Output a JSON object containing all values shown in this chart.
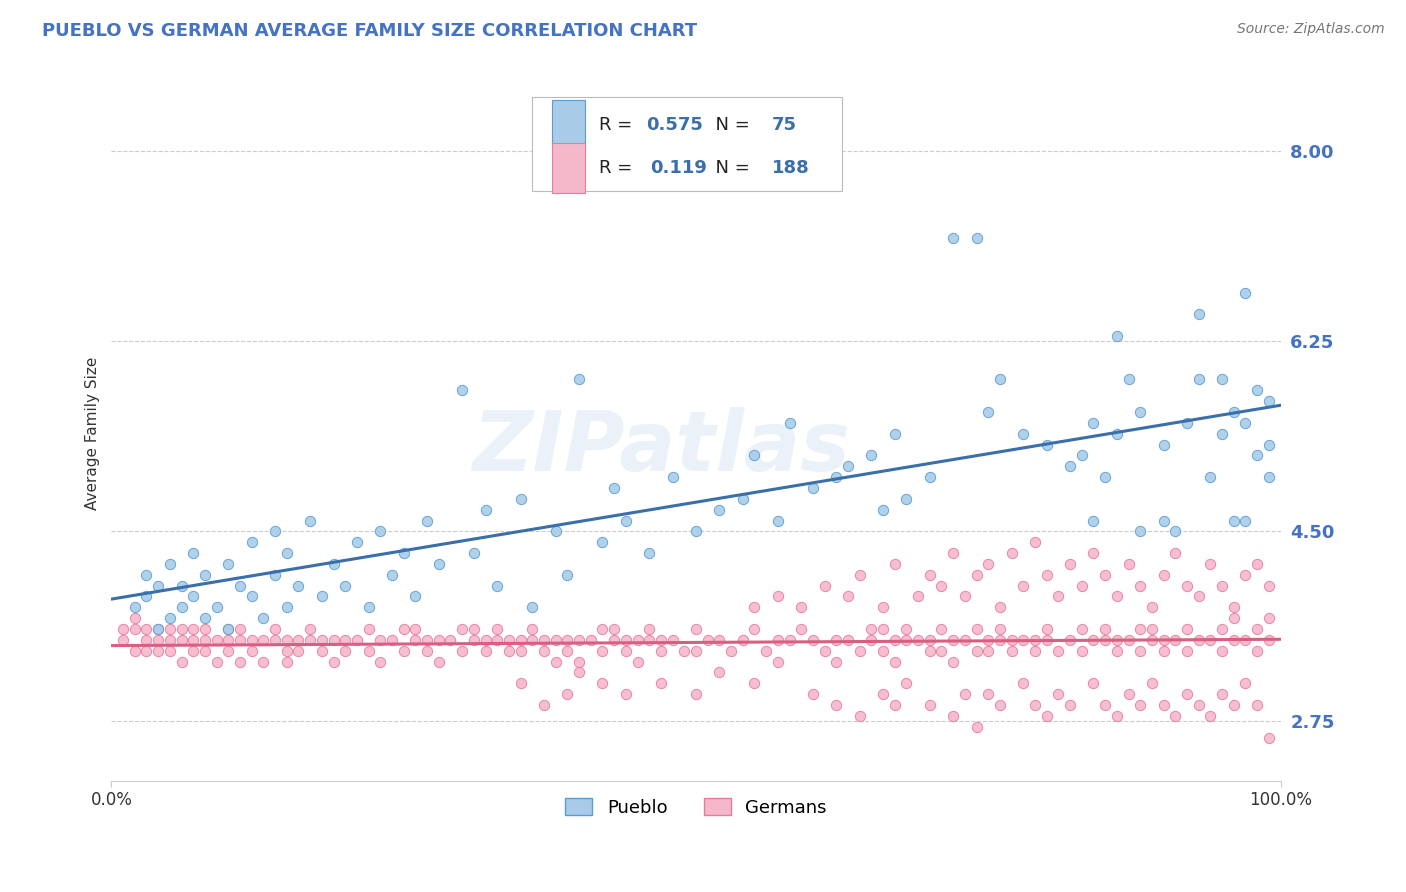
{
  "title": "PUEBLO VS GERMAN AVERAGE FAMILY SIZE CORRELATION CHART",
  "source_text": "Source: ZipAtlas.com",
  "ylabel": "Average Family Size",
  "xlim": [
    0.0,
    1.0
  ],
  "ylim": [
    2.2,
    8.6
  ],
  "ytick_values": [
    2.75,
    4.5,
    6.25,
    8.0
  ],
  "ytick_labels": [
    "2.75",
    "4.50",
    "6.25",
    "8.00"
  ],
  "blue_color": "#a8cce8",
  "pink_color": "#f5b8cb",
  "blue_edge_color": "#5b9bd5",
  "pink_edge_color": "#e87a9e",
  "blue_line_color": "#3a6faa",
  "pink_line_color": "#d95f82",
  "R_blue": "0.575",
  "N_blue": "75",
  "R_pink": "0.119",
  "N_pink": "188",
  "legend_labels": [
    "Pueblo",
    "Germans"
  ],
  "watermark_text": "ZIPatlas",
  "title_color": "#4472c4",
  "source_color": "#777777",
  "ytick_color": "#4472c4",
  "grid_color": "#cccccc",
  "blue_scatter": [
    [
      0.02,
      3.8
    ],
    [
      0.03,
      3.9
    ],
    [
      0.03,
      4.1
    ],
    [
      0.04,
      3.6
    ],
    [
      0.04,
      4.0
    ],
    [
      0.05,
      3.7
    ],
    [
      0.05,
      4.2
    ],
    [
      0.06,
      3.8
    ],
    [
      0.06,
      4.0
    ],
    [
      0.07,
      3.9
    ],
    [
      0.07,
      4.3
    ],
    [
      0.08,
      3.7
    ],
    [
      0.08,
      4.1
    ],
    [
      0.09,
      3.8
    ],
    [
      0.1,
      4.2
    ],
    [
      0.1,
      3.6
    ],
    [
      0.11,
      4.0
    ],
    [
      0.12,
      3.9
    ],
    [
      0.12,
      4.4
    ],
    [
      0.13,
      3.7
    ],
    [
      0.14,
      4.1
    ],
    [
      0.14,
      4.5
    ],
    [
      0.15,
      3.8
    ],
    [
      0.15,
      4.3
    ],
    [
      0.16,
      4.0
    ],
    [
      0.17,
      4.6
    ],
    [
      0.18,
      3.9
    ],
    [
      0.19,
      4.2
    ],
    [
      0.2,
      4.0
    ],
    [
      0.21,
      4.4
    ],
    [
      0.22,
      3.8
    ],
    [
      0.23,
      4.5
    ],
    [
      0.24,
      4.1
    ],
    [
      0.25,
      4.3
    ],
    [
      0.26,
      3.9
    ],
    [
      0.27,
      4.6
    ],
    [
      0.28,
      4.2
    ],
    [
      0.3,
      5.8
    ],
    [
      0.31,
      4.3
    ],
    [
      0.32,
      4.7
    ],
    [
      0.33,
      4.0
    ],
    [
      0.35,
      4.8
    ],
    [
      0.36,
      3.8
    ],
    [
      0.38,
      4.5
    ],
    [
      0.39,
      4.1
    ],
    [
      0.4,
      5.9
    ],
    [
      0.42,
      4.4
    ],
    [
      0.43,
      4.9
    ],
    [
      0.44,
      4.6
    ],
    [
      0.46,
      4.3
    ],
    [
      0.48,
      5.0
    ],
    [
      0.5,
      4.5
    ],
    [
      0.52,
      4.7
    ],
    [
      0.54,
      4.8
    ],
    [
      0.55,
      5.2
    ],
    [
      0.57,
      4.6
    ],
    [
      0.58,
      5.5
    ],
    [
      0.6,
      4.9
    ],
    [
      0.62,
      5.0
    ],
    [
      0.63,
      5.1
    ],
    [
      0.65,
      5.2
    ],
    [
      0.66,
      4.7
    ],
    [
      0.67,
      5.4
    ],
    [
      0.68,
      4.8
    ],
    [
      0.7,
      5.0
    ],
    [
      0.72,
      7.2
    ],
    [
      0.74,
      7.2
    ],
    [
      0.75,
      5.6
    ],
    [
      0.76,
      5.9
    ],
    [
      0.78,
      5.4
    ],
    [
      0.8,
      5.3
    ],
    [
      0.82,
      5.1
    ],
    [
      0.84,
      5.5
    ],
    [
      0.86,
      5.4
    ],
    [
      0.88,
      5.6
    ],
    [
      0.9,
      5.3
    ],
    [
      0.92,
      5.5
    ],
    [
      0.93,
      5.9
    ],
    [
      0.95,
      5.4
    ],
    [
      0.97,
      5.5
    ],
    [
      0.97,
      4.6
    ],
    [
      0.98,
      5.8
    ],
    [
      0.99,
      5.7
    ],
    [
      0.99,
      5.3
    ],
    [
      0.97,
      6.7
    ],
    [
      0.93,
      6.5
    ],
    [
      0.86,
      6.3
    ],
    [
      0.95,
      5.9
    ],
    [
      0.96,
      5.6
    ],
    [
      0.83,
      5.2
    ],
    [
      0.84,
      4.6
    ],
    [
      0.85,
      5.0
    ],
    [
      0.87,
      5.9
    ],
    [
      0.88,
      4.5
    ],
    [
      0.9,
      4.6
    ],
    [
      0.91,
      4.5
    ],
    [
      0.94,
      5.0
    ],
    [
      0.96,
      4.6
    ],
    [
      0.98,
      5.2
    ],
    [
      0.99,
      5.0
    ]
  ],
  "pink_scatter": [
    [
      0.01,
      3.5
    ],
    [
      0.01,
      3.6
    ],
    [
      0.02,
      3.4
    ],
    [
      0.02,
      3.6
    ],
    [
      0.02,
      3.7
    ],
    [
      0.03,
      3.5
    ],
    [
      0.03,
      3.6
    ],
    [
      0.03,
      3.4
    ],
    [
      0.04,
      3.5
    ],
    [
      0.04,
      3.6
    ],
    [
      0.04,
      3.4
    ],
    [
      0.05,
      3.5
    ],
    [
      0.05,
      3.6
    ],
    [
      0.05,
      3.4
    ],
    [
      0.06,
      3.5
    ],
    [
      0.06,
      3.6
    ],
    [
      0.06,
      3.3
    ],
    [
      0.07,
      3.5
    ],
    [
      0.07,
      3.4
    ],
    [
      0.07,
      3.6
    ],
    [
      0.08,
      3.5
    ],
    [
      0.08,
      3.4
    ],
    [
      0.08,
      3.6
    ],
    [
      0.09,
      3.5
    ],
    [
      0.09,
      3.3
    ],
    [
      0.1,
      3.6
    ],
    [
      0.1,
      3.4
    ],
    [
      0.1,
      3.5
    ],
    [
      0.11,
      3.5
    ],
    [
      0.11,
      3.3
    ],
    [
      0.11,
      3.6
    ],
    [
      0.12,
      3.5
    ],
    [
      0.12,
      3.4
    ],
    [
      0.13,
      3.5
    ],
    [
      0.13,
      3.3
    ],
    [
      0.14,
      3.5
    ],
    [
      0.14,
      3.6
    ],
    [
      0.15,
      3.4
    ],
    [
      0.15,
      3.5
    ],
    [
      0.15,
      3.3
    ],
    [
      0.16,
      3.5
    ],
    [
      0.16,
      3.4
    ],
    [
      0.17,
      3.6
    ],
    [
      0.17,
      3.5
    ],
    [
      0.18,
      3.4
    ],
    [
      0.18,
      3.5
    ],
    [
      0.19,
      3.5
    ],
    [
      0.19,
      3.3
    ],
    [
      0.2,
      3.5
    ],
    [
      0.2,
      3.4
    ],
    [
      0.21,
      3.5
    ],
    [
      0.22,
      3.6
    ],
    [
      0.22,
      3.4
    ],
    [
      0.23,
      3.5
    ],
    [
      0.23,
      3.3
    ],
    [
      0.24,
      3.5
    ],
    [
      0.25,
      3.6
    ],
    [
      0.25,
      3.4
    ],
    [
      0.26,
      3.5
    ],
    [
      0.26,
      3.6
    ],
    [
      0.27,
      3.4
    ],
    [
      0.27,
      3.5
    ],
    [
      0.28,
      3.5
    ],
    [
      0.28,
      3.3
    ],
    [
      0.29,
      3.5
    ],
    [
      0.3,
      3.6
    ],
    [
      0.3,
      3.4
    ],
    [
      0.31,
      3.5
    ],
    [
      0.31,
      3.6
    ],
    [
      0.32,
      3.4
    ],
    [
      0.32,
      3.5
    ],
    [
      0.33,
      3.6
    ],
    [
      0.33,
      3.5
    ],
    [
      0.34,
      3.4
    ],
    [
      0.34,
      3.5
    ],
    [
      0.35,
      3.5
    ],
    [
      0.35,
      3.4
    ],
    [
      0.36,
      3.5
    ],
    [
      0.36,
      3.6
    ],
    [
      0.37,
      3.4
    ],
    [
      0.37,
      3.5
    ],
    [
      0.38,
      3.5
    ],
    [
      0.38,
      3.3
    ],
    [
      0.39,
      3.5
    ],
    [
      0.39,
      3.4
    ],
    [
      0.4,
      3.5
    ],
    [
      0.4,
      3.3
    ],
    [
      0.41,
      3.5
    ],
    [
      0.42,
      3.4
    ],
    [
      0.42,
      3.6
    ],
    [
      0.43,
      3.5
    ],
    [
      0.43,
      3.6
    ],
    [
      0.44,
      3.4
    ],
    [
      0.44,
      3.5
    ],
    [
      0.45,
      3.5
    ],
    [
      0.45,
      3.3
    ],
    [
      0.46,
      3.5
    ],
    [
      0.46,
      3.6
    ],
    [
      0.47,
      3.4
    ],
    [
      0.47,
      3.5
    ],
    [
      0.48,
      3.5
    ],
    [
      0.49,
      3.4
    ],
    [
      0.5,
      3.6
    ],
    [
      0.5,
      3.4
    ],
    [
      0.51,
      3.5
    ],
    [
      0.52,
      3.5
    ],
    [
      0.53,
      3.4
    ],
    [
      0.54,
      3.5
    ],
    [
      0.55,
      3.6
    ],
    [
      0.56,
      3.4
    ],
    [
      0.57,
      3.5
    ],
    [
      0.57,
      3.3
    ],
    [
      0.58,
      3.5
    ],
    [
      0.59,
      3.6
    ],
    [
      0.6,
      3.5
    ],
    [
      0.61,
      3.4
    ],
    [
      0.62,
      3.5
    ],
    [
      0.62,
      3.3
    ],
    [
      0.63,
      3.5
    ],
    [
      0.64,
      3.4
    ],
    [
      0.65,
      3.5
    ],
    [
      0.65,
      3.6
    ],
    [
      0.66,
      3.4
    ],
    [
      0.66,
      3.6
    ],
    [
      0.67,
      3.5
    ],
    [
      0.67,
      3.3
    ],
    [
      0.68,
      3.5
    ],
    [
      0.68,
      3.6
    ],
    [
      0.69,
      3.5
    ],
    [
      0.7,
      3.4
    ],
    [
      0.7,
      3.5
    ],
    [
      0.71,
      3.6
    ],
    [
      0.71,
      3.4
    ],
    [
      0.72,
      3.5
    ],
    [
      0.72,
      3.3
    ],
    [
      0.73,
      3.5
    ],
    [
      0.74,
      3.4
    ],
    [
      0.74,
      3.6
    ],
    [
      0.75,
      3.5
    ],
    [
      0.75,
      3.4
    ],
    [
      0.76,
      3.5
    ],
    [
      0.76,
      3.6
    ],
    [
      0.77,
      3.4
    ],
    [
      0.77,
      3.5
    ],
    [
      0.78,
      3.5
    ],
    [
      0.79,
      3.4
    ],
    [
      0.79,
      3.5
    ],
    [
      0.8,
      3.5
    ],
    [
      0.8,
      3.6
    ],
    [
      0.81,
      3.4
    ],
    [
      0.82,
      3.5
    ],
    [
      0.83,
      3.6
    ],
    [
      0.83,
      3.4
    ],
    [
      0.84,
      3.5
    ],
    [
      0.85,
      3.5
    ],
    [
      0.85,
      3.6
    ],
    [
      0.86,
      3.4
    ],
    [
      0.86,
      3.5
    ],
    [
      0.87,
      3.5
    ],
    [
      0.88,
      3.6
    ],
    [
      0.88,
      3.4
    ],
    [
      0.89,
      3.5
    ],
    [
      0.89,
      3.6
    ],
    [
      0.9,
      3.5
    ],
    [
      0.9,
      3.4
    ],
    [
      0.91,
      3.5
    ],
    [
      0.92,
      3.6
    ],
    [
      0.92,
      3.4
    ],
    [
      0.93,
      3.5
    ],
    [
      0.94,
      3.5
    ],
    [
      0.95,
      3.6
    ],
    [
      0.95,
      3.4
    ],
    [
      0.96,
      3.5
    ],
    [
      0.96,
      3.7
    ],
    [
      0.97,
      3.5
    ],
    [
      0.98,
      3.4
    ],
    [
      0.98,
      3.6
    ],
    [
      0.99,
      3.5
    ],
    [
      0.99,
      3.7
    ],
    [
      0.55,
      3.8
    ],
    [
      0.57,
      3.9
    ],
    [
      0.59,
      3.8
    ],
    [
      0.61,
      4.0
    ],
    [
      0.63,
      3.9
    ],
    [
      0.64,
      4.1
    ],
    [
      0.66,
      3.8
    ],
    [
      0.67,
      4.2
    ],
    [
      0.69,
      3.9
    ],
    [
      0.7,
      4.1
    ],
    [
      0.71,
      4.0
    ],
    [
      0.72,
      4.3
    ],
    [
      0.73,
      3.9
    ],
    [
      0.74,
      4.1
    ],
    [
      0.75,
      4.2
    ],
    [
      0.76,
      3.8
    ],
    [
      0.77,
      4.3
    ],
    [
      0.78,
      4.0
    ],
    [
      0.79,
      4.4
    ],
    [
      0.8,
      4.1
    ],
    [
      0.81,
      3.9
    ],
    [
      0.82,
      4.2
    ],
    [
      0.83,
      4.0
    ],
    [
      0.84,
      4.3
    ],
    [
      0.85,
      4.1
    ],
    [
      0.86,
      3.9
    ],
    [
      0.87,
      4.2
    ],
    [
      0.88,
      4.0
    ],
    [
      0.89,
      3.8
    ],
    [
      0.9,
      4.1
    ],
    [
      0.91,
      4.3
    ],
    [
      0.92,
      4.0
    ],
    [
      0.93,
      3.9
    ],
    [
      0.94,
      4.2
    ],
    [
      0.95,
      4.0
    ],
    [
      0.96,
      3.8
    ],
    [
      0.97,
      4.1
    ],
    [
      0.98,
      4.2
    ],
    [
      0.99,
      4.0
    ],
    [
      0.6,
      3.0
    ],
    [
      0.62,
      2.9
    ],
    [
      0.64,
      2.8
    ],
    [
      0.66,
      3.0
    ],
    [
      0.67,
      2.9
    ],
    [
      0.68,
      3.1
    ],
    [
      0.7,
      2.9
    ],
    [
      0.72,
      2.8
    ],
    [
      0.73,
      3.0
    ],
    [
      0.74,
      2.7
    ],
    [
      0.75,
      3.0
    ],
    [
      0.76,
      2.9
    ],
    [
      0.78,
      3.1
    ],
    [
      0.79,
      2.9
    ],
    [
      0.8,
      2.8
    ],
    [
      0.81,
      3.0
    ],
    [
      0.82,
      2.9
    ],
    [
      0.84,
      3.1
    ],
    [
      0.85,
      2.9
    ],
    [
      0.86,
      2.8
    ],
    [
      0.87,
      3.0
    ],
    [
      0.88,
      2.9
    ],
    [
      0.89,
      3.1
    ],
    [
      0.9,
      2.9
    ],
    [
      0.91,
      2.8
    ],
    [
      0.92,
      3.0
    ],
    [
      0.93,
      2.9
    ],
    [
      0.94,
      2.8
    ],
    [
      0.95,
      3.0
    ],
    [
      0.96,
      2.9
    ],
    [
      0.97,
      3.1
    ],
    [
      0.98,
      2.9
    ],
    [
      0.99,
      2.6
    ],
    [
      0.35,
      3.1
    ],
    [
      0.37,
      2.9
    ],
    [
      0.39,
      3.0
    ],
    [
      0.4,
      3.2
    ],
    [
      0.42,
      3.1
    ],
    [
      0.44,
      3.0
    ],
    [
      0.47,
      3.1
    ],
    [
      0.5,
      3.0
    ],
    [
      0.52,
      3.2
    ],
    [
      0.55,
      3.1
    ]
  ]
}
